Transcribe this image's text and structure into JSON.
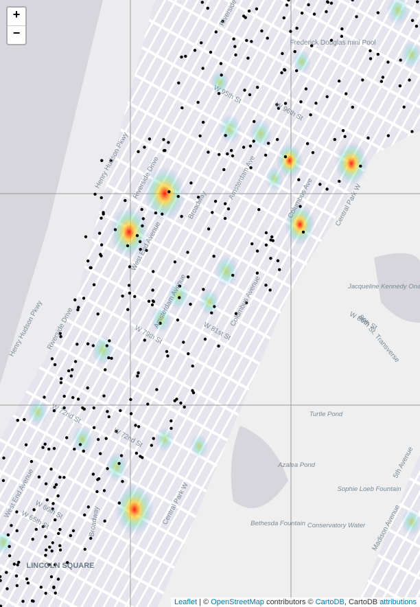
{
  "zoom_controls": {
    "zoom_in": "+",
    "zoom_out": "−"
  },
  "map_labels": [
    "Frederick Douglas mini Pool",
    "W 95th St",
    "W 96th St",
    "Henry Hudson Pkwy",
    "Riverside Drive",
    "West End Avenue",
    "Broadway",
    "Amsterdam Ave",
    "Columbus Ave",
    "Central Park W",
    "W 86th St",
    "W 81st St",
    "W 79th St",
    "Henry Hudson Pkwy",
    "Riverside Drive",
    "W 72nd St",
    "W 72nd St",
    "West End Avenue",
    "W 66th St",
    "W 65th St",
    "LINCOLN SQUARE",
    "Turtle Pond",
    "Azalea Pond",
    "Bethesda Fountain",
    "Conservatory Water",
    "Sophie Loeb Fountain",
    "Jacqueline Kennedy Onassis Reservoir",
    "86th St. Transverse",
    "5th Avenue",
    "Madison Avenue",
    "Columbus Avenue",
    "Amsterdam Avenue",
    "Broadway",
    "Central Park W",
    "Riverside"
  ],
  "attribution": {
    "leaflet": "Leaflet",
    "sep1": "| ©",
    "osm": "OpenStreetMap",
    "contrib": "contributors ©",
    "cartodb": "CartoDB",
    "sep2": ", CartoDB",
    "attributions": "attributions"
  }
}
